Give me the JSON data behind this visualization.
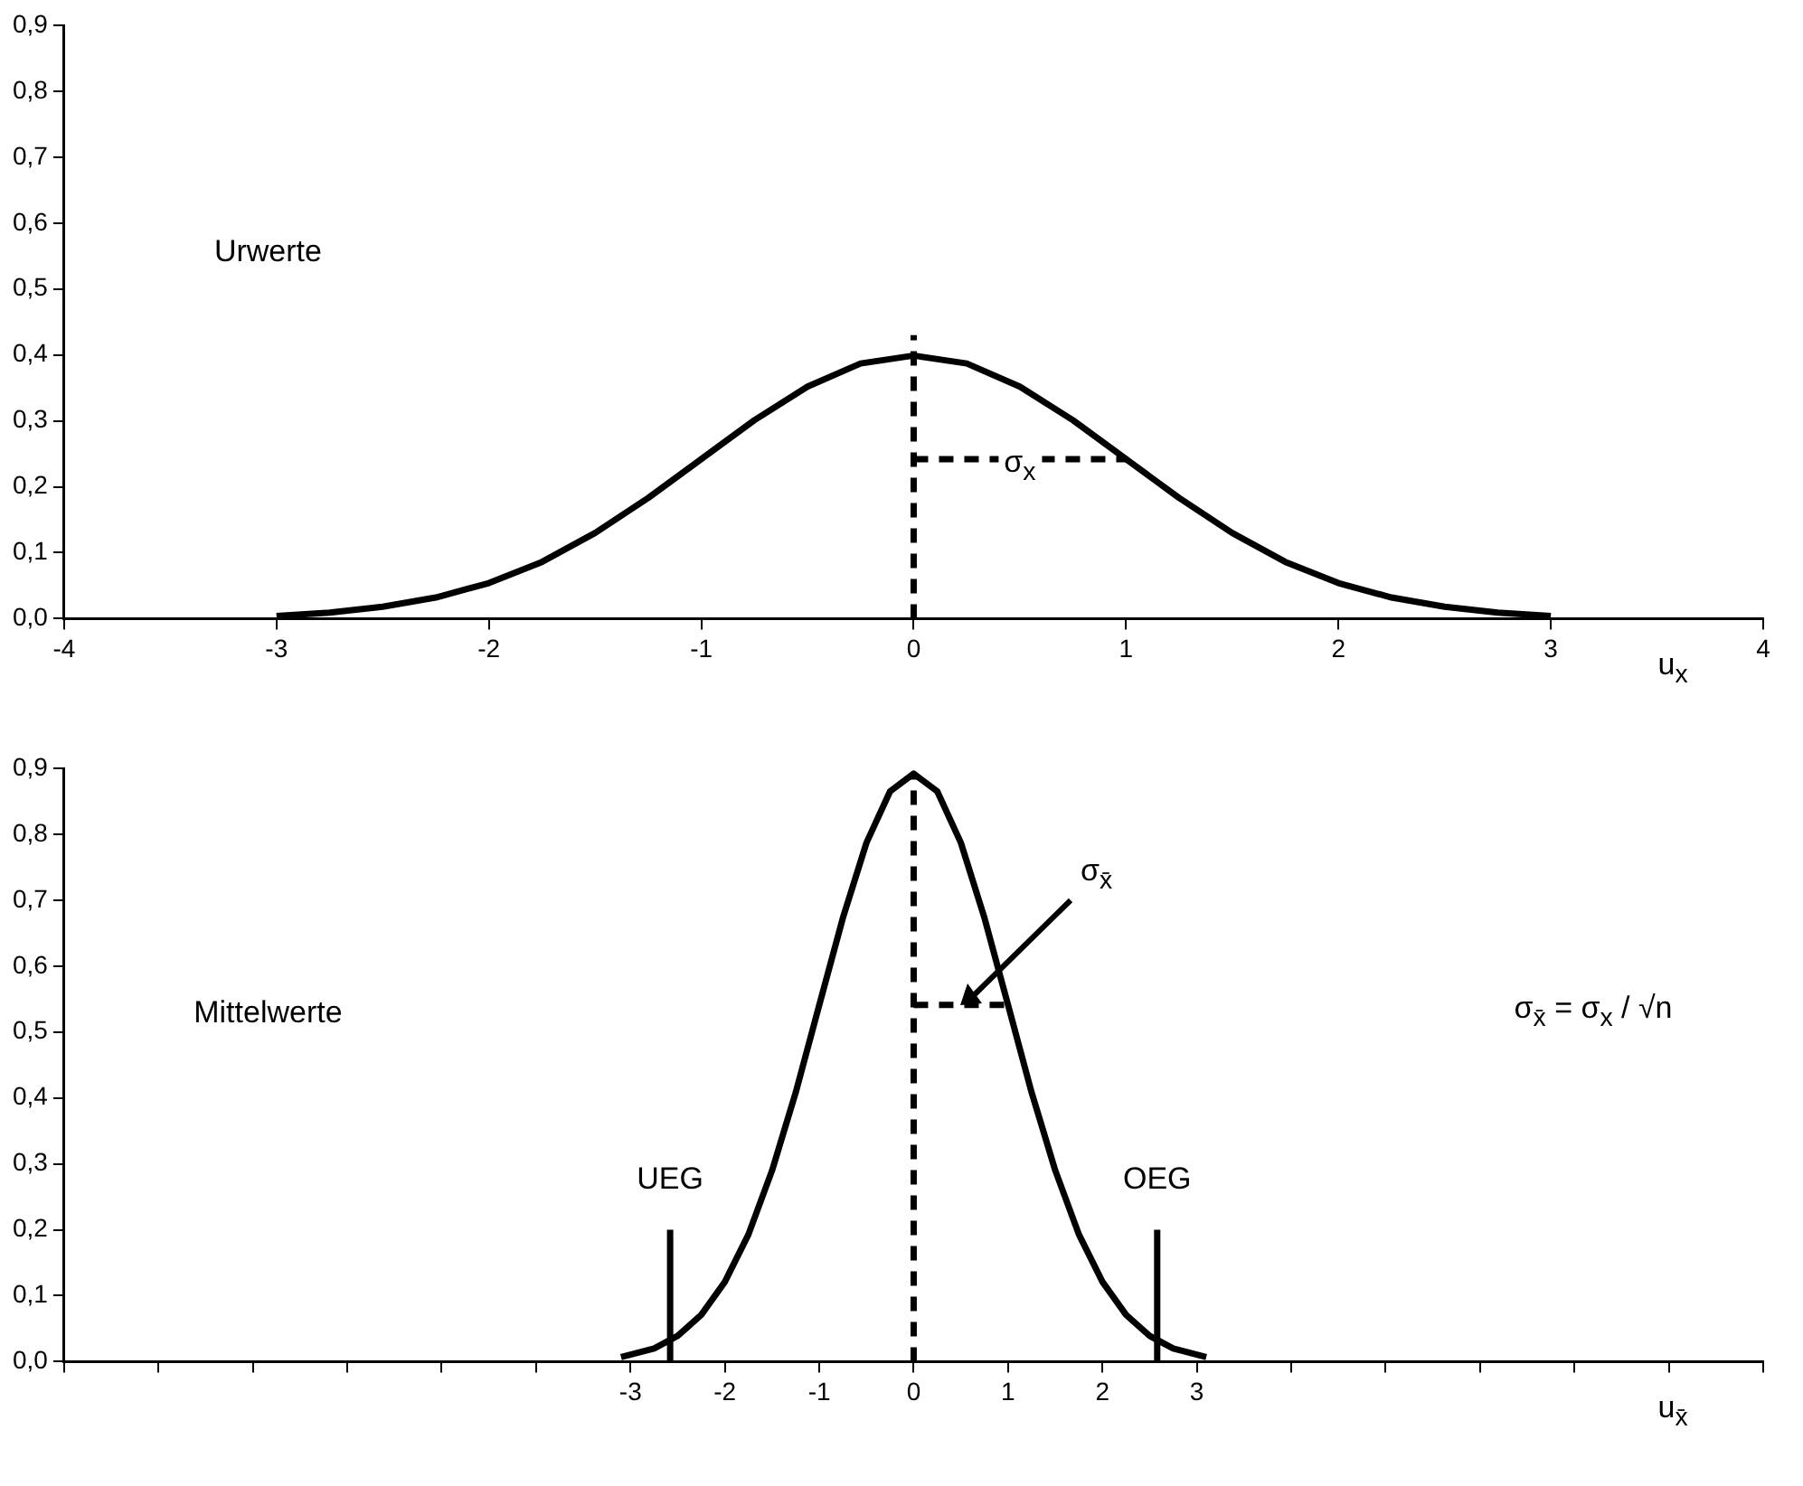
{
  "chart_data": [
    {
      "type": "line",
      "xlabel": "u$_{x}$",
      "xlim": [
        -4,
        4
      ],
      "xticks": [
        -4,
        -3,
        -2,
        -1,
        0,
        1,
        2,
        3,
        4
      ],
      "ylim": [
        0,
        0.9
      ],
      "yticks": [
        {
          "value": 0,
          "label": "0,0"
        },
        {
          "value": 0.1,
          "label": "0,1"
        },
        {
          "value": 0.2,
          "label": "0,2"
        },
        {
          "value": 0.3,
          "label": "0,3"
        },
        {
          "value": 0.4,
          "label": "0,4"
        },
        {
          "value": 0.5,
          "label": "0,5"
        },
        {
          "value": 0.6,
          "label": "0,6"
        },
        {
          "value": 0.7,
          "label": "0,7"
        },
        {
          "value": 0.8,
          "label": "0,8"
        },
        {
          "value": 0.9,
          "label": "0,9"
        }
      ],
      "grid": false,
      "legend": false,
      "marker": "none",
      "annotations": [
        "Urwerte",
        {
          "text": "σ$_{x}$",
          "x": 0.5,
          "y": 0.242
        }
      ],
      "series": [
        {
          "color": "#000000",
          "line_style": "solid",
          "x": [
            -3,
            -2.75,
            -2.5,
            -2.25,
            -2,
            -1.75,
            -1.5,
            -1.25,
            -1,
            -0.75,
            -0.5,
            -0.25,
            0,
            0.25,
            0.5,
            0.75,
            1,
            1.25,
            1.5,
            1.75,
            2,
            2.25,
            2.5,
            2.75,
            3
          ],
          "values": [
            0.004,
            0.009,
            0.018,
            0.032,
            0.054,
            0.086,
            0.13,
            0.183,
            0.242,
            0.301,
            0.352,
            0.387,
            0.399,
            0.387,
            0.352,
            0.301,
            0.242,
            0.183,
            0.13,
            0.086,
            0.054,
            0.032,
            0.018,
            0.009,
            0.004
          ]
        },
        {
          "color": "#000000",
          "line_style": "dashed",
          "x": [
            0,
            0
          ],
          "values": [
            0,
            0.43
          ]
        },
        {
          "color": "#000000",
          "line_style": "dashed",
          "x": [
            0,
            1
          ],
          "values": [
            0.242,
            0.242
          ]
        }
      ]
    },
    {
      "type": "line",
      "xlabel": "u$_{x̄}$",
      "xlim": [
        -9,
        9
      ],
      "xticks": [
        {
          "value": -9,
          "label": null
        },
        {
          "value": -8,
          "label": null
        },
        {
          "value": -7,
          "label": null
        },
        {
          "value": -6,
          "label": null
        },
        {
          "value": -5,
          "label": null
        },
        {
          "value": -4,
          "label": null
        },
        -3,
        -2,
        -1,
        0,
        1,
        2,
        3,
        {
          "value": 4,
          "label": null
        },
        {
          "value": 5,
          "label": null
        },
        {
          "value": 6,
          "label": null
        },
        {
          "value": 7,
          "label": null
        },
        {
          "value": 8,
          "label": null
        },
        {
          "value": 9,
          "label": null
        }
      ],
      "ylim": [
        0,
        0.9
      ],
      "yticks": [
        {
          "value": 0,
          "label": "0,0"
        },
        {
          "value": 0.1,
          "label": "0,1"
        },
        {
          "value": 0.2,
          "label": "0,2"
        },
        {
          "value": 0.3,
          "label": "0,3"
        },
        {
          "value": 0.4,
          "label": "0,4"
        },
        {
          "value": 0.5,
          "label": "0,5"
        },
        {
          "value": 0.6,
          "label": "0,6"
        },
        {
          "value": 0.7,
          "label": "0,7"
        },
        {
          "value": 0.8,
          "label": "0,8"
        },
        {
          "value": 0.9,
          "label": "0,9"
        }
      ],
      "grid": false,
      "legend": false,
      "marker": "none",
      "annotations": [
        "Mittelwerte",
        {
          "text": "σ$_{x̄}$",
          "x": 0.5,
          "y": 0.541
        },
        "σ$_{x̄}$ = σ$_{x}$ / √n"
      ],
      "series": [
        {
          "color": "#000000",
          "line_style": "solid",
          "x": [
            -3.1,
            -2.75,
            -2.5,
            -2.25,
            -2,
            -1.75,
            -1.5,
            -1.25,
            -1,
            -0.75,
            -0.5,
            -0.25,
            0,
            0.25,
            0.5,
            0.75,
            1,
            1.25,
            1.5,
            1.75,
            2,
            2.25,
            2.5,
            2.75,
            3.1
          ],
          "values": [
            0.007,
            0.02,
            0.039,
            0.071,
            0.121,
            0.193,
            0.29,
            0.408,
            0.541,
            0.673,
            0.787,
            0.865,
            0.892,
            0.865,
            0.787,
            0.673,
            0.541,
            0.408,
            0.29,
            0.193,
            0.121,
            0.071,
            0.039,
            0.02,
            0.007
          ]
        },
        {
          "color": "#000000",
          "line_style": "dashed",
          "x": [
            0,
            0
          ],
          "values": [
            0,
            0.892
          ]
        },
        {
          "color": "#000000",
          "line_style": "dashed",
          "x": [
            0,
            1
          ],
          "values": [
            0.541,
            0.541
          ]
        },
        {
          "name": "UEG",
          "color": "#000000",
          "line_style": "solid",
          "x": [
            -2.58,
            -2.58
          ],
          "values": [
            0,
            0.2
          ]
        },
        {
          "name": "OEG",
          "color": "#000000",
          "line_style": "solid",
          "x": [
            2.58,
            2.58
          ],
          "values": [
            0,
            0.2
          ]
        }
      ]
    }
  ]
}
